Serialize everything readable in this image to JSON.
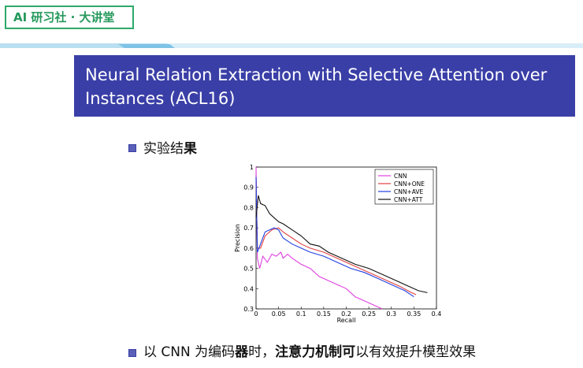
{
  "brand": {
    "badge": "AI 研习社 · 大讲堂"
  },
  "slide": {
    "title": "Neural Relation Extraction with Selective Attention over Instances (ACL16)",
    "heading_part1": "实验结",
    "heading_part2": "果",
    "footer_a": "以 CNN 为编码",
    "footer_b": "器",
    "footer_c": "时，",
    "footer_d": "注意力机制可",
    "footer_e": "以有效提升模型效果"
  },
  "colors": {
    "accent": "#3a3fa7",
    "brand": "#24995c"
  },
  "chart_data": {
    "type": "line",
    "title": "",
    "xlabel": "Recall",
    "ylabel": "Precision",
    "xlim": [
      0,
      0.4
    ],
    "ylim": [
      0.3,
      1
    ],
    "xticks": [
      "0",
      "0.05",
      "0.1",
      "0.15",
      "0.2",
      "0.25",
      "0.3",
      "0.35",
      "0.4"
    ],
    "yticks": [
      "0.3",
      "0.4",
      "0.5",
      "0.6",
      "0.7",
      "0.8",
      "0.9",
      "1"
    ],
    "legend_position": "top-right",
    "series": [
      {
        "name": "CNN",
        "color": "#e040e0",
        "points": [
          [
            0.0,
            1.0
          ],
          [
            0.003,
            0.55
          ],
          [
            0.008,
            0.5
          ],
          [
            0.015,
            0.56
          ],
          [
            0.025,
            0.53
          ],
          [
            0.035,
            0.57
          ],
          [
            0.045,
            0.56
          ],
          [
            0.055,
            0.58
          ],
          [
            0.06,
            0.55
          ],
          [
            0.07,
            0.57
          ],
          [
            0.08,
            0.55
          ],
          [
            0.1,
            0.52
          ],
          [
            0.12,
            0.5
          ],
          [
            0.14,
            0.46
          ],
          [
            0.16,
            0.44
          ],
          [
            0.18,
            0.42
          ],
          [
            0.2,
            0.4
          ],
          [
            0.22,
            0.36
          ],
          [
            0.24,
            0.34
          ],
          [
            0.26,
            0.32
          ],
          [
            0.28,
            0.3
          ]
        ]
      },
      {
        "name": "CNN+ONE",
        "color": "#e04040",
        "points": [
          [
            0.0,
            0.95
          ],
          [
            0.003,
            0.6
          ],
          [
            0.01,
            0.6
          ],
          [
            0.02,
            0.66
          ],
          [
            0.035,
            0.69
          ],
          [
            0.05,
            0.7
          ],
          [
            0.06,
            0.68
          ],
          [
            0.08,
            0.65
          ],
          [
            0.1,
            0.62
          ],
          [
            0.12,
            0.6
          ],
          [
            0.15,
            0.58
          ],
          [
            0.18,
            0.55
          ],
          [
            0.2,
            0.53
          ],
          [
            0.23,
            0.5
          ],
          [
            0.26,
            0.47
          ],
          [
            0.29,
            0.44
          ],
          [
            0.32,
            0.41
          ],
          [
            0.345,
            0.38
          ],
          [
            0.355,
            0.37
          ]
        ]
      },
      {
        "name": "CNN+AVE",
        "color": "#2040e0",
        "points": [
          [
            0.0,
            0.95
          ],
          [
            0.003,
            0.58
          ],
          [
            0.01,
            0.62
          ],
          [
            0.02,
            0.68
          ],
          [
            0.03,
            0.69
          ],
          [
            0.04,
            0.7
          ],
          [
            0.05,
            0.69
          ],
          [
            0.06,
            0.65
          ],
          [
            0.08,
            0.62
          ],
          [
            0.1,
            0.6
          ],
          [
            0.12,
            0.58
          ],
          [
            0.15,
            0.56
          ],
          [
            0.18,
            0.53
          ],
          [
            0.21,
            0.5
          ],
          [
            0.24,
            0.48
          ],
          [
            0.27,
            0.45
          ],
          [
            0.3,
            0.42
          ],
          [
            0.33,
            0.39
          ],
          [
            0.35,
            0.36
          ]
        ]
      },
      {
        "name": "CNN+ATT",
        "color": "#111111",
        "points": [
          [
            0.0,
            0.75
          ],
          [
            0.005,
            0.86
          ],
          [
            0.01,
            0.82
          ],
          [
            0.02,
            0.81
          ],
          [
            0.03,
            0.77
          ],
          [
            0.04,
            0.75
          ],
          [
            0.05,
            0.73
          ],
          [
            0.06,
            0.72
          ],
          [
            0.08,
            0.69
          ],
          [
            0.1,
            0.66
          ],
          [
            0.12,
            0.62
          ],
          [
            0.14,
            0.61
          ],
          [
            0.16,
            0.58
          ],
          [
            0.18,
            0.56
          ],
          [
            0.2,
            0.54
          ],
          [
            0.22,
            0.52
          ],
          [
            0.25,
            0.5
          ],
          [
            0.28,
            0.47
          ],
          [
            0.31,
            0.44
          ],
          [
            0.34,
            0.41
          ],
          [
            0.36,
            0.39
          ],
          [
            0.38,
            0.38
          ]
        ]
      }
    ]
  }
}
